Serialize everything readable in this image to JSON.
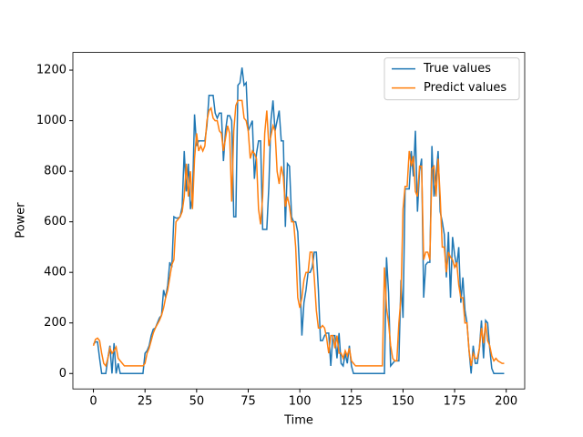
{
  "chart_data": {
    "type": "line",
    "x_label": "Time",
    "y_label": "Power",
    "x": [
      0,
      1,
      2,
      3,
      4,
      5,
      6,
      7,
      8,
      9,
      10,
      11,
      12,
      13,
      14,
      15,
      16,
      17,
      18,
      19,
      20,
      21,
      22,
      23,
      24,
      25,
      26,
      27,
      28,
      29,
      30,
      31,
      32,
      33,
      34,
      35,
      36,
      37,
      38,
      39,
      40,
      41,
      42,
      43,
      44,
      45,
      46,
      47,
      48,
      49,
      50,
      51,
      52,
      53,
      54,
      55,
      56,
      57,
      58,
      59,
      60,
      61,
      62,
      63,
      64,
      65,
      66,
      67,
      68,
      69,
      70,
      71,
      72,
      73,
      74,
      75,
      76,
      77,
      78,
      79,
      80,
      81,
      82,
      83,
      84,
      85,
      86,
      87,
      88,
      89,
      90,
      91,
      92,
      93,
      94,
      95,
      96,
      97,
      98,
      99,
      100,
      101,
      102,
      103,
      104,
      105,
      106,
      107,
      108,
      109,
      110,
      111,
      112,
      113,
      114,
      115,
      116,
      117,
      118,
      119,
      120,
      121,
      122,
      123,
      124,
      125,
      126,
      127,
      128,
      129,
      130,
      131,
      132,
      133,
      134,
      135,
      136,
      137,
      138,
      139,
      140,
      141,
      142,
      143,
      144,
      145,
      146,
      147,
      148,
      149,
      150,
      151,
      152,
      153,
      154,
      155,
      156,
      157,
      158,
      159,
      160,
      161,
      162,
      163,
      164,
      165,
      166,
      167,
      168,
      169,
      170,
      171,
      172,
      173,
      174,
      175,
      176,
      177,
      178,
      179,
      180,
      181,
      182,
      183,
      184,
      185,
      186,
      187,
      188,
      189,
      190,
      191,
      192,
      193,
      194,
      195,
      196,
      197,
      198,
      199
    ],
    "series": [
      {
        "name": "True values",
        "color": "#1f77b4",
        "values": [
          115,
          125,
          125,
          60,
          0,
          0,
          0,
          60,
          110,
          0,
          120,
          0,
          40,
          0,
          0,
          0,
          0,
          0,
          0,
          0,
          0,
          0,
          0,
          0,
          0,
          80,
          90,
          110,
          150,
          175,
          180,
          200,
          220,
          230,
          330,
          300,
          350,
          440,
          420,
          620,
          615,
          615,
          620,
          660,
          880,
          720,
          830,
          650,
          700,
          1025,
          900,
          920,
          920,
          920,
          920,
          980,
          1100,
          1100,
          1100,
          1030,
          1010,
          1030,
          1030,
          840,
          960,
          1020,
          1020,
          1000,
          620,
          620,
          1140,
          1150,
          1210,
          1140,
          1150,
          960,
          980,
          1000,
          770,
          870,
          920,
          920,
          570,
          570,
          570,
          740,
          1000,
          1080,
          960,
          1000,
          1040,
          920,
          920,
          580,
          830,
          820,
          620,
          600,
          600,
          560,
          390,
          150,
          280,
          330,
          400,
          400,
          420,
          480,
          480,
          330,
          130,
          130,
          150,
          160,
          160,
          30,
          150,
          150,
          60,
          160,
          40,
          30,
          80,
          40,
          110,
          30,
          0,
          0,
          0,
          0,
          0,
          0,
          0,
          0,
          0,
          0,
          0,
          0,
          0,
          0,
          0,
          0,
          460,
          320,
          30,
          40,
          50,
          50,
          50,
          370,
          220,
          730,
          730,
          730,
          880,
          780,
          960,
          640,
          800,
          850,
          300,
          430,
          440,
          440,
          900,
          700,
          780,
          880,
          640,
          600,
          550,
          380,
          560,
          300,
          540,
          470,
          420,
          500,
          280,
          380,
          250,
          200,
          90,
          0,
          110,
          40,
          40,
          100,
          210,
          60,
          210,
          200,
          100,
          20,
          0,
          0,
          0,
          0,
          0,
          0
        ]
      },
      {
        "name": "Predict values",
        "color": "#ff7f0e",
        "values": [
          110,
          135,
          140,
          130,
          80,
          40,
          30,
          60,
          100,
          80,
          90,
          105,
          60,
          50,
          40,
          30,
          30,
          30,
          30,
          30,
          30,
          30,
          30,
          30,
          30,
          40,
          80,
          100,
          130,
          160,
          180,
          195,
          210,
          230,
          260,
          300,
          330,
          380,
          430,
          450,
          600,
          610,
          620,
          640,
          700,
          830,
          700,
          800,
          650,
          850,
          950,
          880,
          900,
          880,
          900,
          1000,
          1040,
          1050,
          1010,
          1000,
          1000,
          960,
          950,
          880,
          930,
          980,
          950,
          680,
          960,
          1060,
          1080,
          1080,
          1080,
          1010,
          1000,
          960,
          850,
          880,
          870,
          850,
          650,
          590,
          700,
          950,
          1040,
          900,
          940,
          980,
          960,
          800,
          750,
          820,
          780,
          660,
          700,
          660,
          600,
          600,
          500,
          300,
          260,
          300,
          370,
          400,
          400,
          480,
          480,
          380,
          250,
          180,
          180,
          190,
          180,
          140,
          80,
          150,
          150,
          100,
          150,
          80,
          80,
          60,
          90,
          70,
          100,
          50,
          40,
          30,
          30,
          30,
          30,
          30,
          30,
          30,
          30,
          30,
          30,
          30,
          30,
          30,
          30,
          420,
          260,
          200,
          110,
          60,
          50,
          50,
          200,
          300,
          650,
          740,
          740,
          880,
          820,
          860,
          720,
          700,
          820,
          820,
          450,
          480,
          480,
          450,
          810,
          820,
          700,
          850,
          700,
          500,
          500,
          400,
          480,
          460,
          450,
          420,
          440,
          350,
          300,
          300,
          200,
          200,
          90,
          30,
          80,
          60,
          60,
          100,
          180,
          120,
          200,
          130,
          110,
          70,
          50,
          60,
          50,
          45,
          40,
          40
        ]
      }
    ],
    "xlim": [
      -9.95,
      208.95
    ],
    "xticks": [
      0,
      25,
      50,
      75,
      100,
      125,
      150,
      175,
      200
    ],
    "ylim": [
      -61,
      1270
    ],
    "yticks": [
      0,
      200,
      400,
      600,
      800,
      1000,
      1200
    ],
    "legend": "upper right"
  }
}
